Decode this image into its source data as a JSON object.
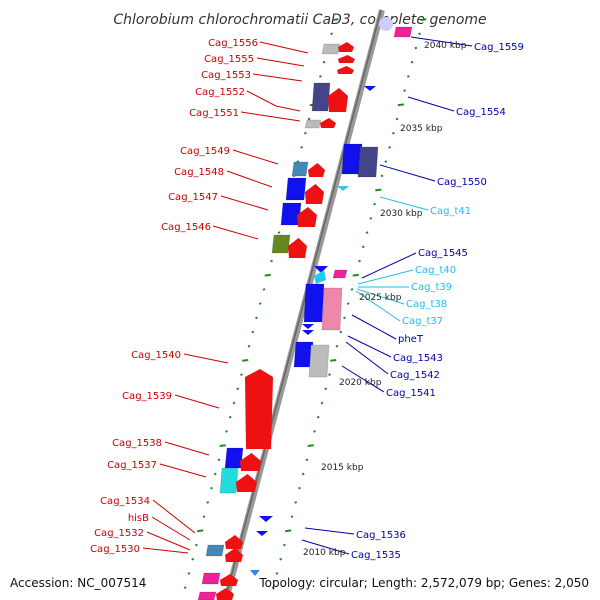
{
  "title": "Chlorobium chlorochromatii CaD3, complete genome",
  "footer": {
    "accession": "Accession: NC_007514",
    "summary": "Topology: circular; Length: 2,572,079 bp; Genes: 2,050"
  },
  "kbp_labels": [
    "2040 kbp",
    "2035 kbp",
    "2030 kbp",
    "2025 kbp",
    "2020 kbp",
    "2015 kbp",
    "2010 kbp"
  ],
  "left_labels": [
    "Cag_1556",
    "Cag_1555",
    "Cag_1553",
    "Cag_1552",
    "Cag_1551",
    "Cag_1549",
    "Cag_1548",
    "Cag_1547",
    "Cag_1546",
    "Cag_1540",
    "Cag_1539",
    "Cag_1538",
    "Cag_1537",
    "Cag_1534",
    "hisB",
    "Cag_1532",
    "Cag_1530"
  ],
  "right_labels": [
    "Cag_1559",
    "Cag_1554",
    "Cag_1550",
    "Cag_t41",
    "Cag_1545",
    "Cag_t40",
    "Cag_t39",
    "Cag_t38",
    "Cag_t37",
    "pheT",
    "Cag_1543",
    "Cag_1542",
    "Cag_1541",
    "Cag_1536",
    "Cag_1535"
  ],
  "colors": {
    "left_label": "#cc0000",
    "right_label_gene": "#0000aa",
    "right_label_rna": "#22bbee",
    "backbone": "#888888",
    "tick": "#228822",
    "gene_red": "#ee1111",
    "gene_blue": "#1111ee",
    "gene_navy": "#444488",
    "gene_gray": "#bbbbbb",
    "gene_pink": "#ee88aa",
    "gene_magenta": "#ee2299",
    "gene_cyan": "#22dddd",
    "gene_steel": "#4488bb",
    "gene_olive": "#668822"
  }
}
